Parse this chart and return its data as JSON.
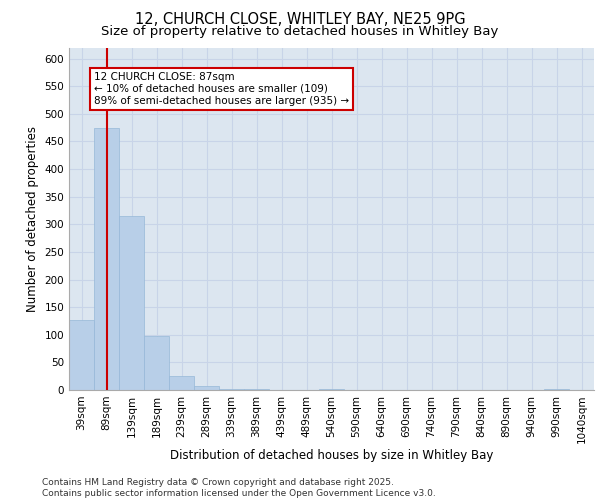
{
  "title1": "12, CHURCH CLOSE, WHITLEY BAY, NE25 9PG",
  "title2": "Size of property relative to detached houses in Whitley Bay",
  "xlabel": "Distribution of detached houses by size in Whitley Bay",
  "ylabel": "Number of detached properties",
  "categories": [
    "39sqm",
    "89sqm",
    "139sqm",
    "189sqm",
    "239sqm",
    "289sqm",
    "339sqm",
    "389sqm",
    "439sqm",
    "489sqm",
    "540sqm",
    "590sqm",
    "640sqm",
    "690sqm",
    "740sqm",
    "790sqm",
    "840sqm",
    "890sqm",
    "940sqm",
    "990sqm",
    "1040sqm"
  ],
  "values": [
    127,
    475,
    315,
    98,
    25,
    7,
    2,
    1,
    0,
    0,
    2,
    0,
    0,
    0,
    0,
    0,
    0,
    0,
    0,
    2,
    0
  ],
  "bar_color": "#b8cfe8",
  "bar_edge_color": "#96b8d8",
  "vline_x": 1,
  "vline_color": "#cc0000",
  "annotation_text": "12 CHURCH CLOSE: 87sqm\n← 10% of detached houses are smaller (109)\n89% of semi-detached houses are larger (935) →",
  "annotation_box_color": "#cc0000",
  "ylim": [
    0,
    620
  ],
  "yticks": [
    0,
    50,
    100,
    150,
    200,
    250,
    300,
    350,
    400,
    450,
    500,
    550,
    600
  ],
  "grid_color": "#c8d4e8",
  "background_color": "#dce6f0",
  "footer_text": "Contains HM Land Registry data © Crown copyright and database right 2025.\nContains public sector information licensed under the Open Government Licence v3.0.",
  "title1_fontsize": 10.5,
  "title2_fontsize": 9.5,
  "annotation_fontsize": 7.5,
  "tick_fontsize": 7.5,
  "label_fontsize": 8.5,
  "footer_fontsize": 6.5
}
